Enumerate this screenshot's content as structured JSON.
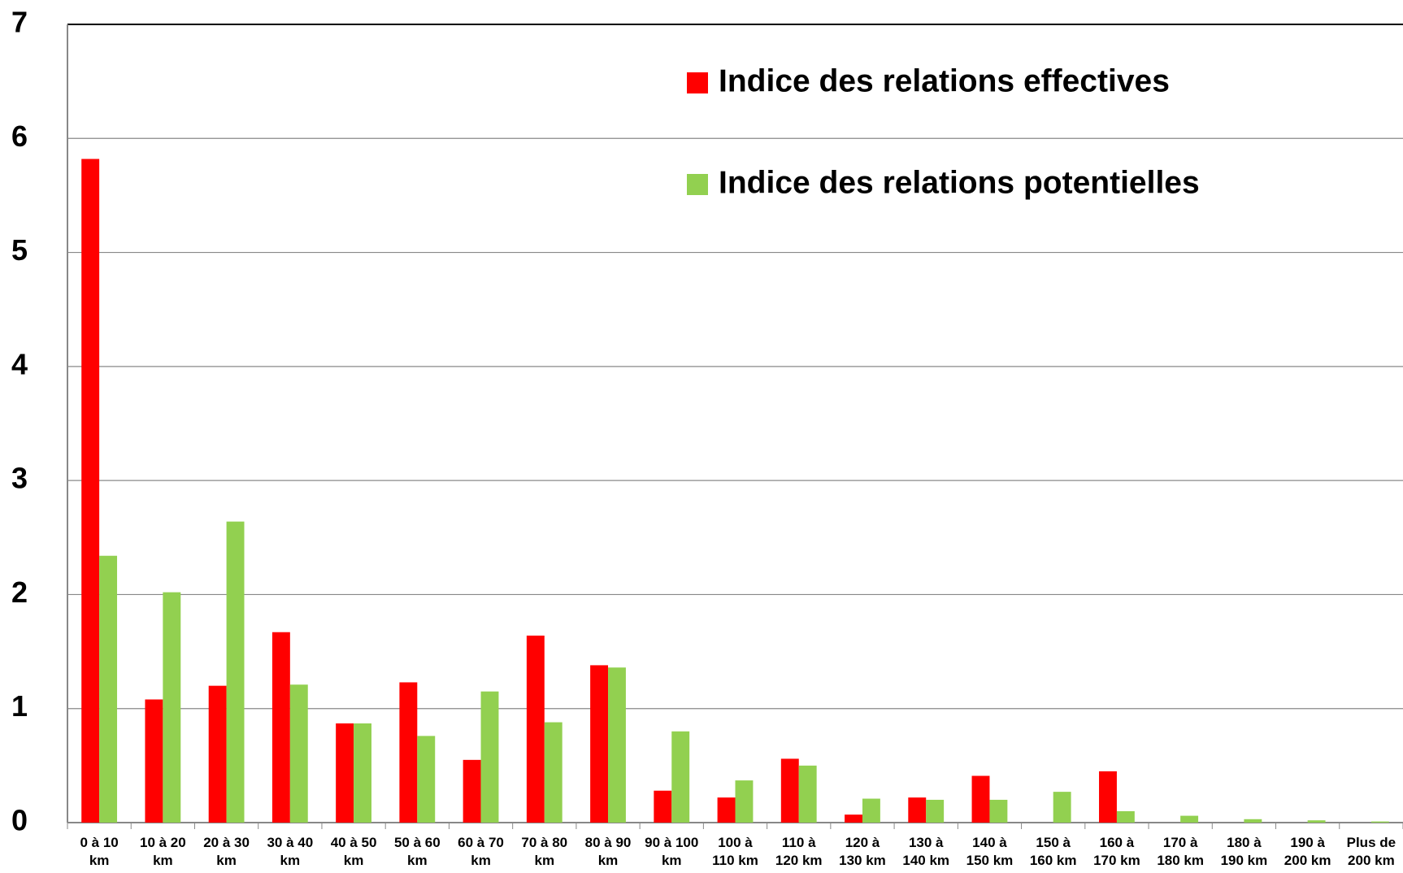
{
  "chart_data": {
    "type": "bar",
    "categories": [
      "0 à 10\nkm",
      "10 à 20\nkm",
      "20 à 30\nkm",
      "30 à 40\nkm",
      "40 à 50\nkm",
      "50 à 60\nkm",
      "60 à 70\nkm",
      "70 à 80\nkm",
      "80 à 90\nkm",
      "90 à 100\nkm",
      "100 à\n110 km",
      "110 à\n120 km",
      "120 à\n130 km",
      "130 à\n140 km",
      "140 à\n150 km",
      "150 à\n160 km",
      "160 à\n170 km",
      "170 à\n180 km",
      "180 à\n190 km",
      "190 à\n200 km",
      "Plus de\n200 km"
    ],
    "series": [
      {
        "name": "Indice des relations effectives",
        "color": "#ff0000",
        "values": [
          5.82,
          1.08,
          1.2,
          1.67,
          0.87,
          1.23,
          0.55,
          1.64,
          1.38,
          0.28,
          0.22,
          0.56,
          0.07,
          0.22,
          0.41,
          0,
          0.45,
          0,
          0,
          0,
          0
        ]
      },
      {
        "name": "Indice des relations potentielles",
        "color": "#92d050",
        "values": [
          2.34,
          2.02,
          2.64,
          1.21,
          0.87,
          0.76,
          1.15,
          0.88,
          1.36,
          0.8,
          0.37,
          0.5,
          0.21,
          0.2,
          0.2,
          0.27,
          0.1,
          0.06,
          0.03,
          0.02,
          0.01
        ]
      }
    ],
    "ylim": [
      0,
      7
    ],
    "yticks": [
      0,
      1,
      2,
      3,
      4,
      5,
      6,
      7
    ],
    "grid": true
  }
}
